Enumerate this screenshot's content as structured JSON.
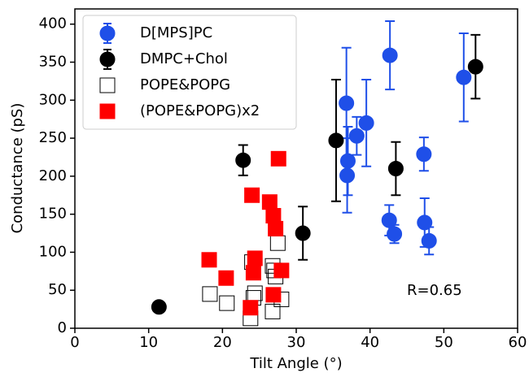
{
  "chart_data": {
    "type": "scatter",
    "xlabel": "Tilt Angle (°)",
    "ylabel": "Conductance (pS)",
    "xlim": [
      0,
      60
    ],
    "ylim": [
      0,
      420
    ],
    "xticks": [
      0,
      10,
      20,
      30,
      40,
      50,
      60
    ],
    "yticks": [
      0,
      50,
      100,
      150,
      200,
      250,
      300,
      350,
      400
    ],
    "legend": "upper left",
    "annotation": {
      "text": "R=0.65",
      "x": 45,
      "y": 49
    },
    "series": [
      {
        "name": "D[MPS]PC",
        "color": "#1f4fe8",
        "marker": "circle",
        "filled": true,
        "x": [
          36.8,
          37.0,
          36.9,
          38.2,
          39.5,
          42.7,
          42.6,
          43.3,
          47.3,
          47.4,
          48.0,
          52.7
        ],
        "values": [
          296,
          220,
          201,
          253,
          270,
          359,
          142,
          124,
          229,
          139,
          115,
          330
        ],
        "errors": [
          73,
          45,
          49,
          25,
          57,
          45,
          20,
          12,
          22,
          32,
          18,
          58
        ]
      },
      {
        "name": "DMPC+Chol",
        "color": "#000000",
        "marker": "circle",
        "filled": true,
        "x": [
          11.4,
          22.8,
          30.9,
          35.4,
          43.5,
          54.3
        ],
        "values": [
          28,
          221,
          125,
          247,
          210,
          344
        ],
        "errors": [
          3,
          20,
          35,
          80,
          35,
          42
        ]
      },
      {
        "name": "POPE&POPG",
        "color": "#000000",
        "marker": "square",
        "filled": false,
        "x": [
          18.3,
          20.6,
          23.8,
          24.0,
          24.4,
          24.2,
          26.8,
          27.0,
          27.2,
          27.5,
          28.0,
          26.8
        ],
        "values": [
          45,
          33,
          13,
          87,
          46,
          40,
          82,
          76,
          68,
          112,
          38,
          22
        ]
      },
      {
        "name": "(POPE&POPG)x2",
        "color": "#ff0000",
        "marker": "square",
        "filled": true,
        "x": [
          18.2,
          20.5,
          23.8,
          24.0,
          24.4,
          24.2,
          26.4,
          26.9,
          27.2,
          27.6,
          28.0,
          26.9
        ],
        "values": [
          90,
          66,
          27,
          175,
          92,
          73,
          166,
          148,
          131,
          223,
          76,
          44
        ]
      }
    ]
  }
}
